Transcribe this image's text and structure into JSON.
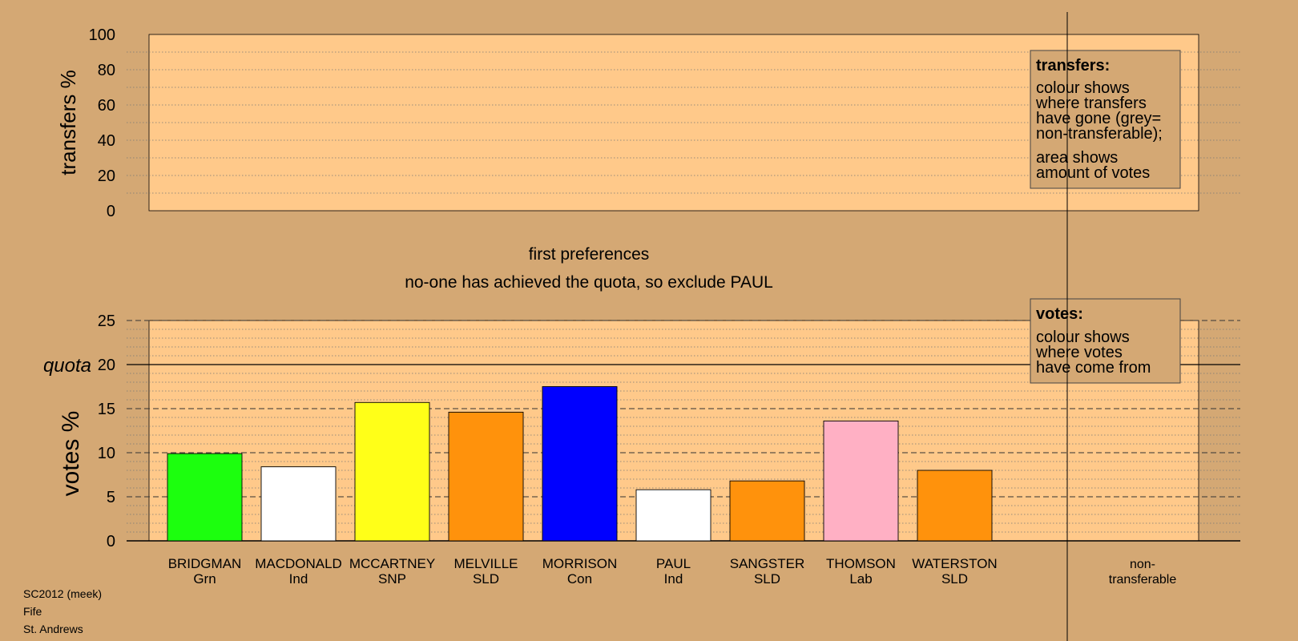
{
  "chart_data": {
    "type": "bar",
    "transfers": {
      "ylabel": "transfers %",
      "ylim": [
        0,
        100
      ],
      "ticks": [
        0,
        20,
        40,
        60,
        80,
        100
      ],
      "legend": {
        "title": "transfers:",
        "lines1": [
          "colour shows",
          "where transfers",
          "have gone (grey=",
          "non-transferable);"
        ],
        "lines2": [
          "area shows",
          "amount of votes"
        ]
      }
    },
    "stage_title": "first preferences",
    "stage_note": "no-one has achieved the quota, so exclude PAUL",
    "votes": {
      "ylabel": "votes %",
      "ylim": [
        0,
        25
      ],
      "ticks": [
        0,
        5,
        10,
        15,
        20,
        25
      ],
      "quota_label": "quota",
      "quota": 20,
      "legend": {
        "title": "votes:",
        "lines": [
          "colour shows",
          "where votes",
          "have come from"
        ]
      }
    },
    "candidates": [
      {
        "name": "BRIDGMAN",
        "party": "Grn",
        "value": 9.9,
        "color": "#1cff0e"
      },
      {
        "name": "MACDONALD",
        "party": "Ind",
        "value": 8.4,
        "color": "#ffffff"
      },
      {
        "name": "MCCARTNEY",
        "party": "SNP",
        "value": 15.7,
        "color": "#ffff18"
      },
      {
        "name": "MELVILLE",
        "party": "SLD",
        "value": 14.6,
        "color": "#ff920c"
      },
      {
        "name": "MORRISON",
        "party": "Con",
        "value": 17.5,
        "color": "#0000ff"
      },
      {
        "name": "PAUL",
        "party": "Ind",
        "value": 5.8,
        "color": "#ffffff"
      },
      {
        "name": "SANGSTER",
        "party": "SLD",
        "value": 6.8,
        "color": "#ff920c"
      },
      {
        "name": "THOMSON",
        "party": "Lab",
        "value": 13.6,
        "color": "#ffb0c4"
      },
      {
        "name": "WATERSTON",
        "party": "SLD",
        "value": 8.0,
        "color": "#ff920c"
      }
    ],
    "nontransferable": [
      "non-",
      "transferable"
    ]
  },
  "info": {
    "election": "SC2012 (meek)",
    "council": "Fife",
    "ward": "St. Andrews"
  }
}
